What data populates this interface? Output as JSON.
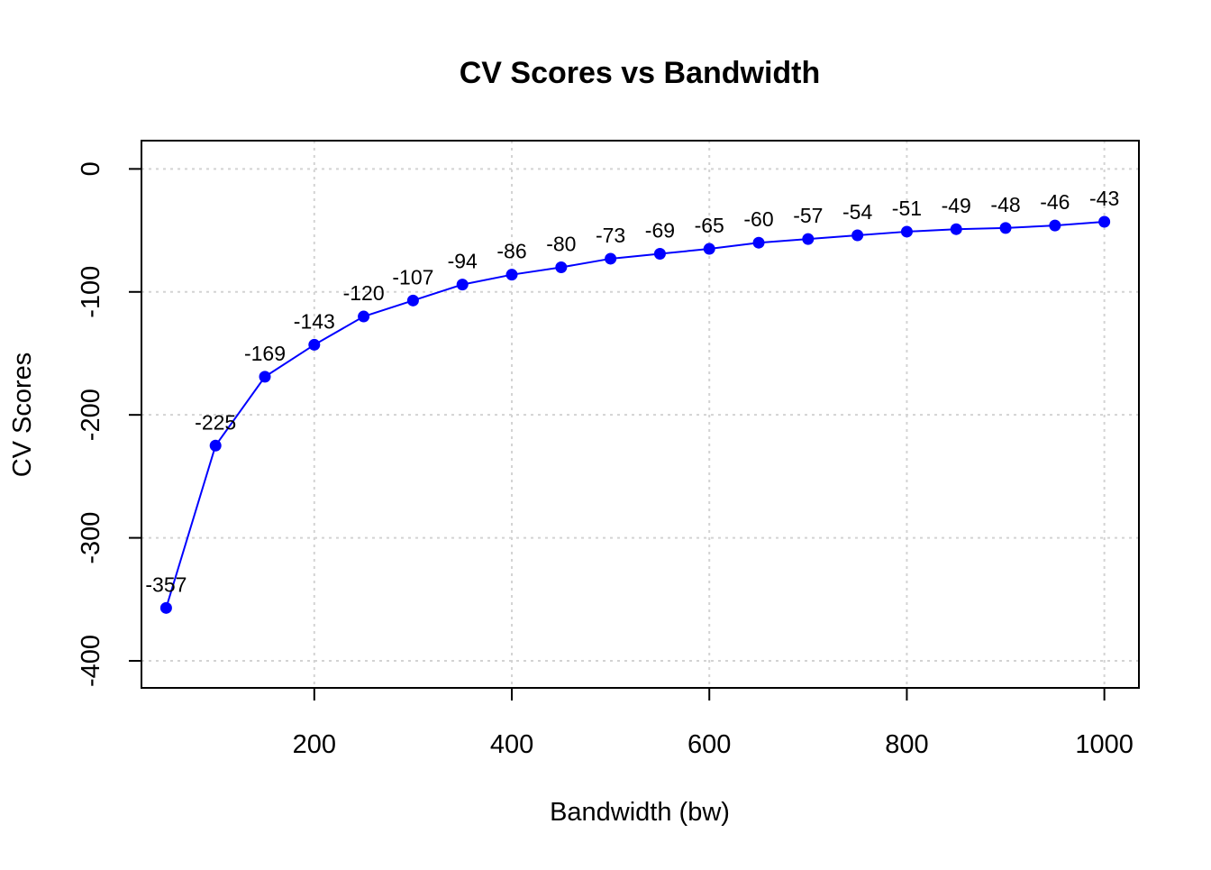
{
  "chart_data": {
    "type": "line",
    "title": "CV Scores vs Bandwidth",
    "xlabel": "Bandwidth (bw)",
    "ylabel": "CV Scores",
    "xlim": [
      25,
      1035
    ],
    "ylim": [
      -422,
      23
    ],
    "xticks": [
      200,
      400,
      600,
      800,
      1000
    ],
    "yticks": [
      0,
      -100,
      -200,
      -300,
      -400
    ],
    "grid": true,
    "series": [
      {
        "x": [
          50,
          100,
          150,
          200,
          250,
          300,
          350,
          400,
          450,
          500,
          550,
          600,
          650,
          700,
          750,
          800,
          850,
          900,
          950,
          1000
        ],
        "y": [
          -357,
          -225,
          -169,
          -143,
          -120,
          -107,
          -94,
          -86,
          -80,
          -73,
          -69,
          -65,
          -60,
          -57,
          -54,
          -51,
          -49,
          -48,
          -46,
          -43
        ],
        "labels": [
          "-357",
          "-225",
          "-169",
          "-143",
          "-120",
          "-107",
          "-94",
          "-86",
          "-80",
          "-73",
          "-69",
          "-65",
          "-60",
          "-57",
          "-54",
          "-51",
          "-49",
          "-48",
          "-46",
          "-43"
        ],
        "color": "#0000ff"
      }
    ]
  }
}
